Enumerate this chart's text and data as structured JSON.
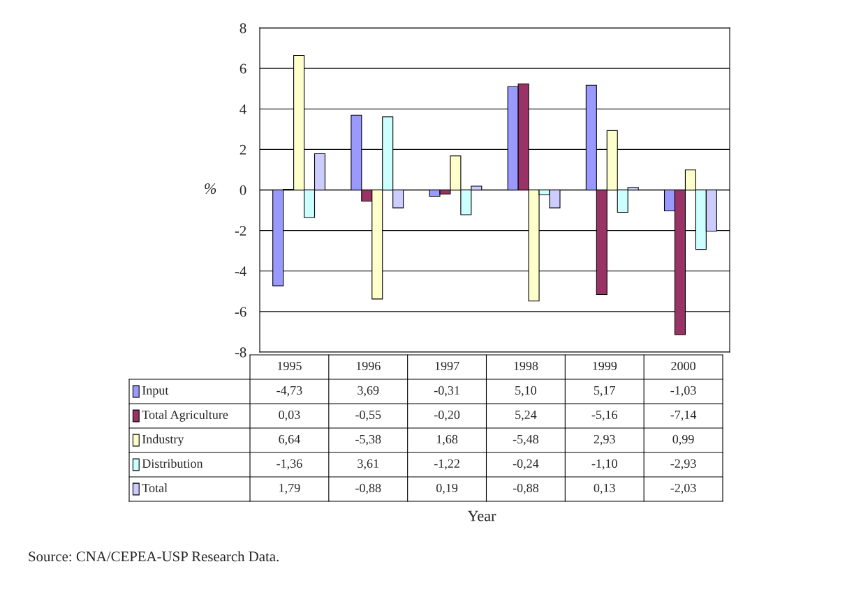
{
  "chart_data": {
    "type": "bar",
    "ylabel": "%",
    "categories": [
      "1995",
      "1996",
      "1997",
      "1998",
      "1999",
      "2000"
    ],
    "ylim": [
      -8,
      8
    ],
    "yticks": [
      -8,
      -6,
      -4,
      -2,
      0,
      2,
      4,
      6,
      8
    ],
    "grid": "y",
    "legend": "bottom",
    "series": [
      {
        "name": "Input",
        "color": "#9999ff",
        "values": [
          -4.73,
          3.69,
          -0.31,
          5.1,
          5.17,
          -1.03
        ],
        "value_labels": [
          "-4,73",
          "3,69",
          "-0,31",
          "5,10",
          "5,17",
          "-1,03"
        ]
      },
      {
        "name": "Total Agriculture",
        "color": "#993366",
        "values": [
          0.03,
          -0.55,
          -0.2,
          5.24,
          -5.16,
          -7.14
        ],
        "value_labels": [
          "0,03",
          "-0,55",
          "-0,20",
          "5,24",
          "-5,16",
          "-7,14"
        ]
      },
      {
        "name": "Industry",
        "color": "#ffffcc",
        "values": [
          6.64,
          -5.38,
          1.68,
          -5.48,
          2.93,
          0.99
        ],
        "value_labels": [
          "6,64",
          "-5,38",
          "1,68",
          "-5,48",
          "2,93",
          "0,99"
        ]
      },
      {
        "name": "Distribution",
        "color": "#ccffff",
        "values": [
          -1.36,
          3.61,
          -1.22,
          -0.24,
          -1.1,
          -2.93
        ],
        "value_labels": [
          "-1,36",
          "3,61",
          "-1,22",
          "-0,24",
          "-1,10",
          "-2,93"
        ]
      },
      {
        "name": "Total",
        "color": "#ccccff",
        "values": [
          1.79,
          -0.88,
          0.19,
          -0.88,
          0.13,
          -2.03
        ],
        "value_labels": [
          "1,79",
          "-0,88",
          "0,19",
          "-0,88",
          "0,13",
          "-2,03"
        ]
      }
    ],
    "annotations": [
      "Year",
      "Source: CNA/CEPEA-USP Research Data."
    ]
  }
}
